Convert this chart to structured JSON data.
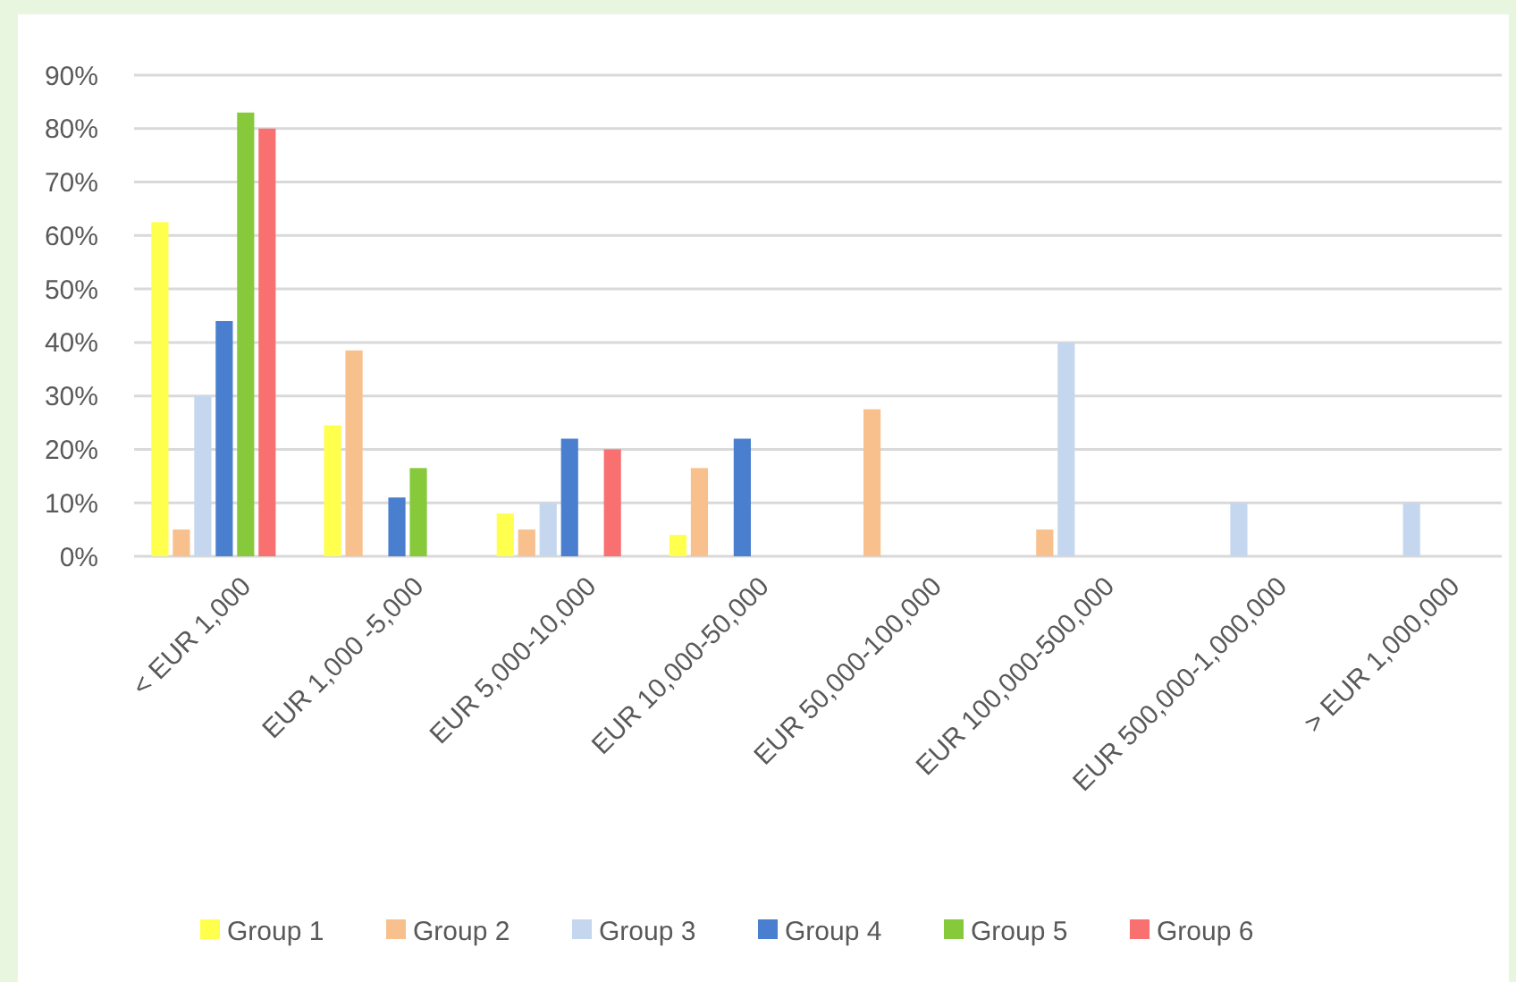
{
  "chart_data": {
    "type": "bar",
    "categories": [
      "< EUR 1,000",
      "EUR 1,000 -5,000",
      "EUR 5,000-10,000",
      "EUR 10,000-50,000",
      "EUR 50,000-100,000",
      "EUR 100,000-500,000",
      "EUR 500,000-1,000,000",
      "> EUR 1,000,000"
    ],
    "series": [
      {
        "name": "Group 1",
        "color": "#ffff4d",
        "values": [
          62.5,
          24.5,
          8,
          4,
          0,
          0,
          0,
          0
        ]
      },
      {
        "name": "Group 2",
        "color": "#f8c08c",
        "values": [
          5,
          38.5,
          5,
          16.5,
          27.5,
          5,
          0,
          0
        ]
      },
      {
        "name": "Group 3",
        "color": "#c5d7ef",
        "values": [
          30,
          0,
          10,
          0,
          0,
          40,
          10,
          10
        ]
      },
      {
        "name": "Group 4",
        "color": "#4a7fcf",
        "values": [
          44,
          11,
          22,
          22,
          0,
          0,
          0,
          0
        ]
      },
      {
        "name": "Group 5",
        "color": "#86c93a",
        "values": [
          83,
          16.5,
          0,
          0,
          0,
          0,
          0,
          0
        ]
      },
      {
        "name": "Group 6",
        "color": "#f87070",
        "values": [
          80,
          0,
          20,
          0,
          0,
          0,
          0,
          0
        ]
      }
    ],
    "ylim": [
      0,
      90
    ],
    "yticks": [
      {
        "value": 0,
        "label": "0%"
      },
      {
        "value": 10,
        "label": "10%"
      },
      {
        "value": 20,
        "label": "20%"
      },
      {
        "value": 30,
        "label": "30%"
      },
      {
        "value": 40,
        "label": "40%"
      },
      {
        "value": 50,
        "label": "50%"
      },
      {
        "value": 60,
        "label": "60%"
      },
      {
        "value": 70,
        "label": "70%"
      },
      {
        "value": 80,
        "label": "80%"
      },
      {
        "value": 90,
        "label": "90%"
      }
    ],
    "grid": "y",
    "legend": "bottom"
  }
}
